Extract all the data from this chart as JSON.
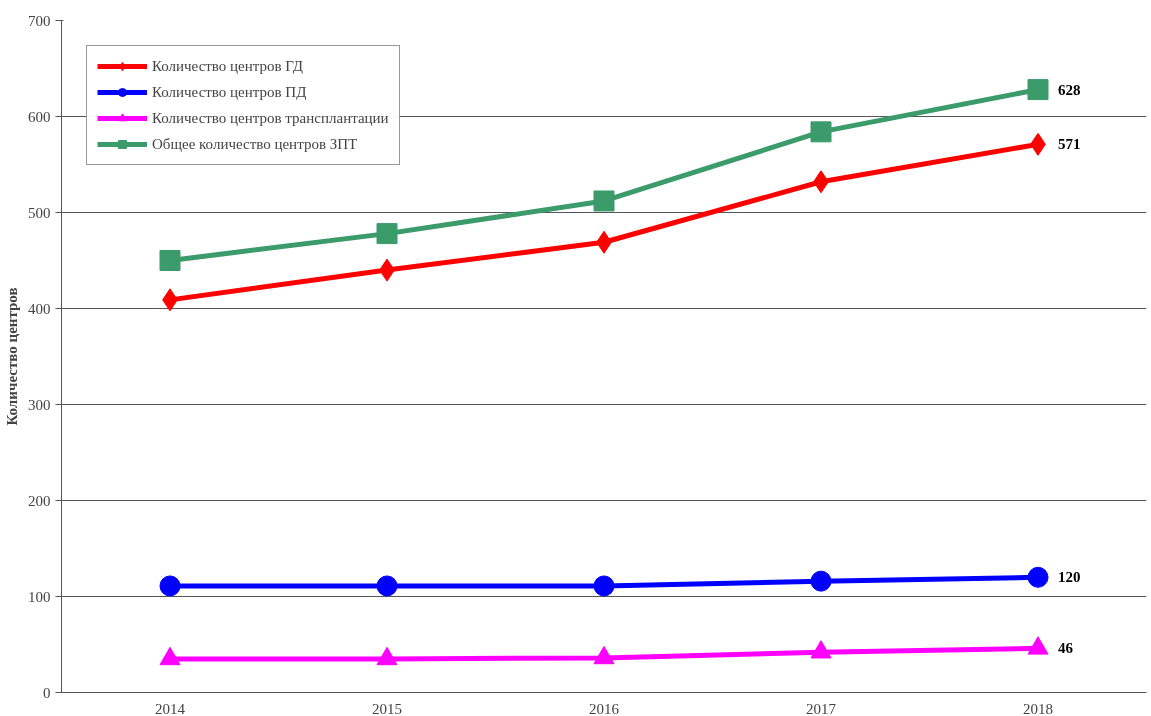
{
  "chart_data": {
    "type": "line",
    "ylabel": "Количество центров",
    "categories": [
      "2014",
      "2015",
      "2016",
      "2017",
      "2018"
    ],
    "series": [
      {
        "name": "Количество центров ГД",
        "color": "#ff0000",
        "marker": "diamond",
        "values": [
          409,
          440,
          469,
          532,
          571
        ],
        "value_labels": [
          null,
          null,
          null,
          null,
          "571"
        ]
      },
      {
        "name": "Количество центров ПД",
        "color": "#0000ff",
        "marker": "circle",
        "values": [
          111,
          111,
          111,
          116,
          120
        ],
        "value_labels": [
          null,
          null,
          null,
          null,
          "120"
        ]
      },
      {
        "name": "Количество центров трансплантации",
        "color": "#ff00ff",
        "marker": "triangle",
        "values": [
          35,
          35,
          36,
          42,
          46
        ],
        "value_labels": [
          null,
          null,
          null,
          null,
          "46"
        ]
      },
      {
        "name": "Общее количество центров ЗПТ",
        "color": "#3c9b6a",
        "marker": "square",
        "values": [
          450,
          478,
          512,
          584,
          628
        ],
        "value_labels": [
          null,
          null,
          null,
          null,
          "628"
        ]
      }
    ],
    "ylim": [
      0,
      700
    ],
    "yticks": [
      0,
      100,
      200,
      300,
      400,
      500,
      600,
      700
    ],
    "grid": "y",
    "legend": "top left",
    "line_style": "solid"
  }
}
